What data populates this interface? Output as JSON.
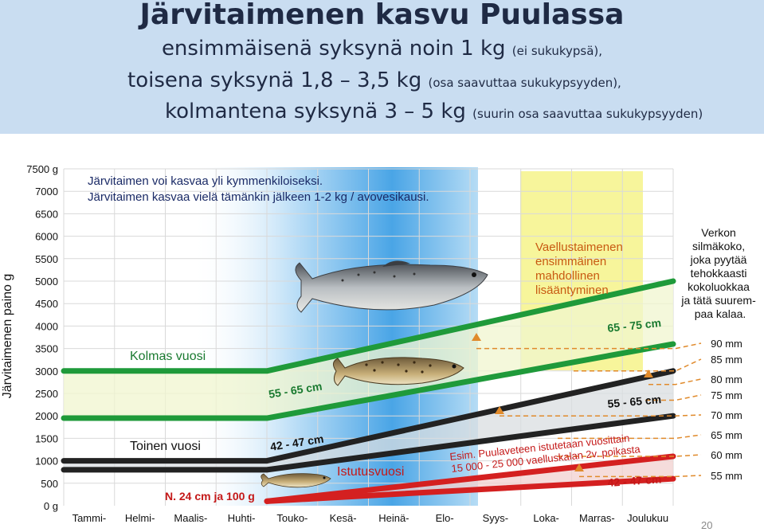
{
  "header": {
    "title": "Järvitaimenen kasvu Puulassa",
    "line1_main": "ensimmäisenä syksynä noin 1 kg",
    "line1_note": "(ei sukukypsä),",
    "line2_main": "toisena syksynä 1,8 – 3,5 kg",
    "line2_note": "(osa saavuttaa sukukypsyyden),",
    "line3_main": "kolmantena syksynä 3 – 5 kg",
    "line3_note": "(suurin osa saavuttaa sukukypsyyden)"
  },
  "page_number": "20",
  "colors": {
    "header_bg": "#c9ddf1",
    "third_year": "#1f9a3a",
    "second_year": "#222222",
    "stocking_year": "#d42020",
    "band_fill": "#f0f5cf",
    "summer_blue": "#5aaee8",
    "autumn_yellow": "#f6f38a",
    "annotation": "#e08a2b"
  },
  "chart_data": {
    "type": "line",
    "ylabel": "Järvitaimenen paino g",
    "ylim": [
      0,
      7500
    ],
    "yticks": [
      "0 g",
      "500",
      "1000",
      "1500",
      "2000",
      "2500",
      "3000",
      "3500",
      "4000",
      "4500",
      "5000",
      "5500",
      "6000",
      "6500",
      "7000",
      "7500 g"
    ],
    "categories": [
      "Tammi-",
      "Helmi-",
      "Maalis-",
      "Huhti-",
      "Touko-",
      "Kesä-",
      "Heinä-",
      "Elo-",
      "Syys-",
      "Loka-",
      "Marras-",
      "Joulukuu"
    ],
    "notes": [
      "Järvitaimen voi kasvaa yli kymmenkiloiseksi.",
      "Järvitaimen kasvaa vielä tämänkin jälkeen 1-2 kg / avovesikausi."
    ],
    "series": [
      {
        "name": "Kolmas vuosi",
        "x": [
          0,
          4,
          12
        ],
        "values": [
          3000,
          3000,
          5000
        ]
      },
      {
        "name": "",
        "x": [
          0,
          4,
          12
        ],
        "values": [
          1950,
          1950,
          3600
        ]
      },
      {
        "name": "Toinen vuosi",
        "x": [
          0,
          4,
          12
        ],
        "values": [
          1000,
          1000,
          3000
        ]
      },
      {
        "name": "",
        "x": [
          0,
          4,
          12
        ],
        "values": [
          800,
          800,
          2000
        ]
      },
      {
        "name": "Istutusvuosi",
        "x": [
          4,
          12
        ],
        "values": [
          100,
          1100
        ]
      },
      {
        "name": "",
        "x": [
          4,
          12
        ],
        "values": [
          100,
          600
        ]
      }
    ],
    "labels": [
      {
        "text": "Kolmas vuosi"
      },
      {
        "text": "Toinen vuosi"
      },
      {
        "text": "Istutusvuosi"
      },
      {
        "text": "N. 24 cm ja 100 g"
      },
      {
        "text": "42 - 47 cm"
      },
      {
        "text": "55 - 65 cm"
      },
      {
        "text": "55 - 65 cm"
      },
      {
        "text": "65 - 75 cm"
      },
      {
        "text": "42 - 47 cm"
      },
      {
        "text": "Esim. Puulaveteen istutetaan vuosittain"
      },
      {
        "text": "15 000 - 25 000 vaelluskalan 2v. poikasta"
      },
      {
        "text": "Vaellustaimenen ensimmäinen mahdollinen lisääntyminen"
      }
    ],
    "mesh_caption": "Verkon silmäkoko, joka pyytää tehokkaasti kokoluokkaa ja tätä suurempaa kalaa.",
    "mesh_sizes": [
      {
        "label": "90 mm",
        "weight": 3500
      },
      {
        "label": "85 mm",
        "weight": 3000
      },
      {
        "label": "80 mm",
        "weight": 2700
      },
      {
        "label": "75 mm",
        "weight": 2350
      },
      {
        "label": "70 mm",
        "weight": 2000
      },
      {
        "label": "65 mm",
        "weight": 1500
      },
      {
        "label": "60 mm",
        "weight": 1100
      },
      {
        "label": "55 mm",
        "weight": 650
      }
    ]
  }
}
